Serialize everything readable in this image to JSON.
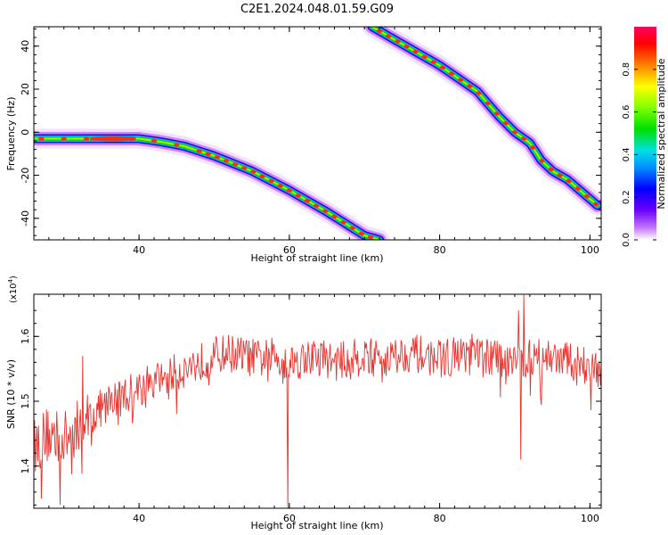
{
  "title": "C2E1.2024.048.01.59.G09",
  "chart_data": [
    {
      "type": "heatmap",
      "xlabel": "Height of straight line (km)",
      "ylabel": "Frequency (Hz)",
      "xlim": [
        26,
        101.5
      ],
      "ylim": [
        -50,
        49
      ],
      "x_ticks": [
        40,
        60,
        80,
        100
      ],
      "y_ticks": [
        40,
        20,
        0,
        -20,
        -40
      ],
      "colorbar": {
        "label": "Normalized spectral amplitude",
        "ticks": [
          "0.0",
          "0.2",
          "0.4",
          "0.6",
          "0.8"
        ],
        "tick_values": [
          0.0,
          0.2,
          0.4,
          0.6,
          0.8
        ],
        "range": [
          0,
          1
        ]
      },
      "ridges": [
        {
          "description": "frequency ridge 1",
          "x": [
            26,
            30,
            35,
            40,
            43,
            46,
            50,
            55,
            60,
            65,
            70,
            72
          ],
          "y": [
            -3,
            -3,
            -3,
            -3,
            -4.5,
            -6.5,
            -11,
            -18,
            -27,
            -37,
            -48,
            -50
          ]
        },
        {
          "description": "frequency ridge 2",
          "x": [
            71,
            75,
            80,
            85,
            88,
            90,
            92,
            93.5,
            95,
            97,
            99,
            101
          ],
          "y": [
            49,
            41,
            31,
            19,
            7,
            0,
            -5,
            -13,
            -18,
            -22,
            -28,
            -34
          ]
        }
      ]
    },
    {
      "type": "line",
      "xlabel": "Height of straight line (km)",
      "ylabel": "SNR (10 * v/v)",
      "y_exponent": "(x10",
      "y_exponent_power": "4",
      "y_exponent_close": ")",
      "xlim": [
        26,
        101.5
      ],
      "ylim": [
        1.335,
        1.665
      ],
      "x_ticks": [
        40,
        60,
        80,
        100
      ],
      "y_ticks": [
        1.4,
        1.5,
        1.6
      ],
      "y_tick_labels": [
        "1.4",
        "1.5",
        "1.6"
      ],
      "series": [
        {
          "color": "#e8332e",
          "x": [
            26,
            28,
            30,
            32,
            34,
            36,
            38,
            40,
            42,
            44,
            46,
            48,
            50,
            52,
            54,
            56,
            58,
            60,
            62,
            64,
            66,
            68,
            70,
            72,
            74,
            76,
            78,
            80,
            82,
            84,
            86,
            88,
            90,
            91,
            92,
            94,
            96,
            98,
            100,
            101.5
          ],
          "y": [
            1.43,
            1.45,
            1.44,
            1.46,
            1.48,
            1.5,
            1.51,
            1.52,
            1.53,
            1.54,
            1.55,
            1.56,
            1.57,
            1.575,
            1.57,
            1.565,
            1.57,
            1.56,
            1.565,
            1.57,
            1.56,
            1.565,
            1.57,
            1.565,
            1.57,
            1.575,
            1.57,
            1.565,
            1.57,
            1.575,
            1.57,
            1.565,
            1.57,
            1.56,
            1.565,
            1.57,
            1.565,
            1.56,
            1.555,
            1.55
          ]
        }
      ],
      "notable_spikes": [
        {
          "x": 27,
          "y": 1.35
        },
        {
          "x": 29.5,
          "y": 1.34
        },
        {
          "x": 32.5,
          "y": 1.57
        },
        {
          "x": 45,
          "y": 1.48
        },
        {
          "x": 59.8,
          "y": 1.335
        },
        {
          "x": 90.5,
          "y": 1.64
        },
        {
          "x": 91.2,
          "y": 1.665
        },
        {
          "x": 90.8,
          "y": 1.41
        }
      ]
    }
  ]
}
